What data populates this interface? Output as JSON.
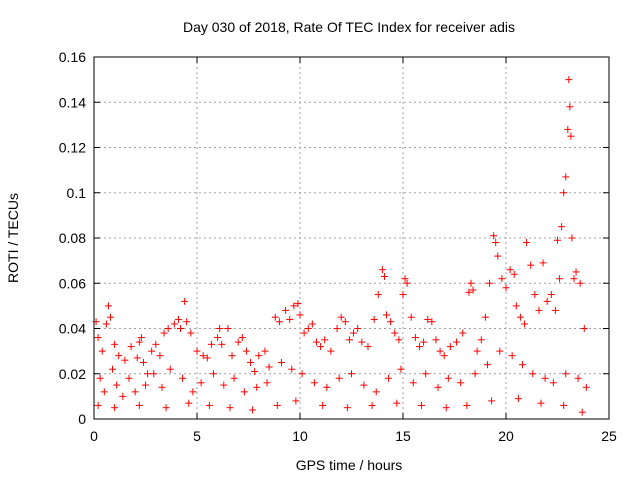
{
  "chart_data": {
    "type": "scatter",
    "title": "Day 030 of 2018, Rate Of TEC Index for receiver adis",
    "xlabel": "GPS time / hours",
    "ylabel": "ROTI / TECUs",
    "xlim": [
      0,
      25
    ],
    "ylim": [
      0,
      0.16
    ],
    "xticks": [
      0,
      5,
      10,
      15,
      20,
      25
    ],
    "xtick_labels": [
      "0",
      "5",
      "10",
      "15",
      "20",
      "25"
    ],
    "yticks": [
      0,
      0.02,
      0.04,
      0.06,
      0.08,
      0.1,
      0.12,
      0.14,
      0.16
    ],
    "ytick_labels": [
      "0",
      "0.02",
      "0.04",
      "0.06",
      "0.08",
      "0.1",
      "0.12",
      "0.14",
      "0.16"
    ],
    "grid": true,
    "marker": "+",
    "color": "#ff0000",
    "series": [
      {
        "points": [
          [
            0.1,
            0.043
          ],
          [
            0.2,
            0.036
          ],
          [
            0.4,
            0.03
          ],
          [
            0.6,
            0.042
          ],
          [
            0.7,
            0.05
          ],
          [
            0.8,
            0.045
          ],
          [
            1.0,
            0.033
          ],
          [
            1.2,
            0.028
          ],
          [
            1.5,
            0.026
          ],
          [
            1.8,
            0.032
          ],
          [
            2.1,
            0.027
          ],
          [
            2.2,
            0.034
          ],
          [
            2.3,
            0.036
          ],
          [
            2.4,
            0.025
          ],
          [
            2.6,
            0.02
          ],
          [
            2.8,
            0.03
          ],
          [
            3.0,
            0.033
          ],
          [
            3.2,
            0.028
          ],
          [
            3.4,
            0.038
          ],
          [
            3.6,
            0.04
          ],
          [
            3.9,
            0.042
          ],
          [
            4.1,
            0.044
          ],
          [
            4.2,
            0.04
          ],
          [
            4.4,
            0.052
          ],
          [
            4.5,
            0.043
          ],
          [
            4.7,
            0.038
          ],
          [
            5.0,
            0.03
          ],
          [
            5.3,
            0.028
          ],
          [
            5.5,
            0.027
          ],
          [
            5.7,
            0.033
          ],
          [
            6.0,
            0.036
          ],
          [
            6.1,
            0.04
          ],
          [
            6.2,
            0.033
          ],
          [
            6.5,
            0.04
          ],
          [
            6.7,
            0.028
          ],
          [
            7.0,
            0.034
          ],
          [
            7.2,
            0.036
          ],
          [
            7.4,
            0.03
          ],
          [
            7.6,
            0.025
          ],
          [
            7.8,
            0.021
          ],
          [
            8.0,
            0.028
          ],
          [
            8.3,
            0.03
          ],
          [
            8.5,
            0.023
          ],
          [
            8.8,
            0.045
          ],
          [
            9.0,
            0.043
          ],
          [
            9.3,
            0.048
          ],
          [
            9.5,
            0.044
          ],
          [
            9.7,
            0.05
          ],
          [
            9.9,
            0.051
          ],
          [
            10.0,
            0.046
          ],
          [
            10.2,
            0.038
          ],
          [
            10.4,
            0.04
          ],
          [
            10.6,
            0.042
          ],
          [
            10.8,
            0.034
          ],
          [
            11.0,
            0.032
          ],
          [
            11.2,
            0.035
          ],
          [
            11.5,
            0.03
          ],
          [
            11.8,
            0.04
          ],
          [
            12.0,
            0.045
          ],
          [
            12.2,
            0.043
          ],
          [
            12.4,
            0.035
          ],
          [
            12.6,
            0.038
          ],
          [
            12.8,
            0.04
          ],
          [
            13.0,
            0.034
          ],
          [
            13.3,
            0.032
          ],
          [
            13.6,
            0.044
          ],
          [
            13.8,
            0.055
          ],
          [
            14.0,
            0.066
          ],
          [
            14.1,
            0.063
          ],
          [
            14.2,
            0.046
          ],
          [
            14.4,
            0.043
          ],
          [
            14.6,
            0.038
          ],
          [
            14.8,
            0.035
          ],
          [
            15.0,
            0.055
          ],
          [
            15.1,
            0.062
          ],
          [
            15.2,
            0.06
          ],
          [
            15.4,
            0.045
          ],
          [
            15.6,
            0.036
          ],
          [
            15.8,
            0.032
          ],
          [
            16.0,
            0.034
          ],
          [
            16.2,
            0.044
          ],
          [
            16.4,
            0.043
          ],
          [
            16.6,
            0.035
          ],
          [
            16.8,
            0.03
          ],
          [
            17.0,
            0.028
          ],
          [
            17.3,
            0.032
          ],
          [
            17.6,
            0.034
          ],
          [
            17.9,
            0.038
          ],
          [
            18.2,
            0.056
          ],
          [
            18.3,
            0.06
          ],
          [
            18.4,
            0.057
          ],
          [
            18.6,
            0.03
          ],
          [
            18.8,
            0.035
          ],
          [
            19.0,
            0.045
          ],
          [
            19.2,
            0.06
          ],
          [
            19.4,
            0.081
          ],
          [
            19.5,
            0.078
          ],
          [
            19.6,
            0.072
          ],
          [
            19.8,
            0.062
          ],
          [
            20.0,
            0.058
          ],
          [
            20.2,
            0.066
          ],
          [
            20.4,
            0.064
          ],
          [
            20.5,
            0.05
          ],
          [
            20.7,
            0.045
          ],
          [
            20.9,
            0.042
          ],
          [
            21.0,
            0.078
          ],
          [
            21.2,
            0.068
          ],
          [
            21.4,
            0.055
          ],
          [
            21.6,
            0.048
          ],
          [
            21.8,
            0.069
          ],
          [
            22.0,
            0.052
          ],
          [
            22.2,
            0.055
          ],
          [
            22.4,
            0.048
          ],
          [
            22.5,
            0.079
          ],
          [
            22.6,
            0.062
          ],
          [
            22.7,
            0.085
          ],
          [
            22.8,
            0.1
          ],
          [
            22.9,
            0.107
          ],
          [
            23.0,
            0.128
          ],
          [
            23.05,
            0.15
          ],
          [
            23.1,
            0.138
          ],
          [
            23.15,
            0.125
          ],
          [
            23.2,
            0.08
          ],
          [
            23.3,
            0.062
          ],
          [
            23.4,
            0.065
          ],
          [
            23.6,
            0.06
          ],
          [
            23.8,
            0.04
          ],
          [
            0.3,
            0.018
          ],
          [
            0.5,
            0.012
          ],
          [
            0.9,
            0.022
          ],
          [
            1.1,
            0.015
          ],
          [
            1.4,
            0.01
          ],
          [
            1.7,
            0.018
          ],
          [
            2.0,
            0.012
          ],
          [
            2.5,
            0.015
          ],
          [
            2.9,
            0.02
          ],
          [
            3.3,
            0.014
          ],
          [
            3.7,
            0.022
          ],
          [
            4.3,
            0.018
          ],
          [
            4.8,
            0.012
          ],
          [
            5.2,
            0.016
          ],
          [
            5.8,
            0.02
          ],
          [
            6.3,
            0.015
          ],
          [
            6.8,
            0.018
          ],
          [
            7.3,
            0.012
          ],
          [
            7.9,
            0.014
          ],
          [
            8.4,
            0.016
          ],
          [
            9.1,
            0.025
          ],
          [
            9.6,
            0.022
          ],
          [
            10.1,
            0.02
          ],
          [
            10.7,
            0.016
          ],
          [
            11.3,
            0.014
          ],
          [
            11.9,
            0.018
          ],
          [
            12.5,
            0.02
          ],
          [
            13.1,
            0.015
          ],
          [
            13.7,
            0.012
          ],
          [
            14.3,
            0.018
          ],
          [
            14.9,
            0.022
          ],
          [
            15.5,
            0.016
          ],
          [
            16.1,
            0.02
          ],
          [
            16.7,
            0.014
          ],
          [
            17.2,
            0.018
          ],
          [
            17.8,
            0.016
          ],
          [
            18.5,
            0.02
          ],
          [
            19.1,
            0.024
          ],
          [
            19.7,
            0.03
          ],
          [
            20.3,
            0.028
          ],
          [
            20.8,
            0.024
          ],
          [
            21.3,
            0.02
          ],
          [
            21.9,
            0.018
          ],
          [
            22.3,
            0.016
          ],
          [
            22.9,
            0.02
          ],
          [
            23.5,
            0.018
          ],
          [
            23.9,
            0.014
          ],
          [
            0.2,
            0.006
          ],
          [
            1.0,
            0.005
          ],
          [
            2.2,
            0.006
          ],
          [
            3.5,
            0.005
          ],
          [
            4.6,
            0.007
          ],
          [
            5.6,
            0.006
          ],
          [
            6.6,
            0.005
          ],
          [
            7.7,
            0.004
          ],
          [
            8.9,
            0.006
          ],
          [
            9.8,
            0.008
          ],
          [
            11.1,
            0.006
          ],
          [
            12.3,
            0.005
          ],
          [
            13.5,
            0.006
          ],
          [
            14.7,
            0.007
          ],
          [
            15.9,
            0.006
          ],
          [
            17.1,
            0.005
          ],
          [
            18.1,
            0.006
          ],
          [
            19.3,
            0.008
          ],
          [
            20.6,
            0.009
          ],
          [
            21.7,
            0.007
          ],
          [
            22.8,
            0.006
          ],
          [
            23.7,
            0.003
          ]
        ]
      }
    ]
  }
}
